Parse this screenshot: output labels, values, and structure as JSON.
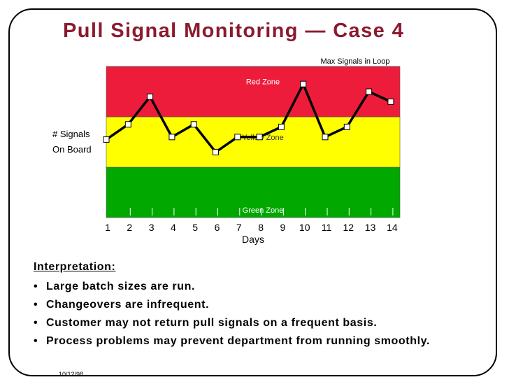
{
  "title": "Pull Signal Monitoring — Case 4",
  "date": "10/12/98",
  "interpretation": {
    "heading": "Interpretation:",
    "bullets": [
      "Large batch sizes are run.",
      "Changeovers are infrequent.",
      "Customer may not return pull signals on a frequent basis.",
      "Process problems may prevent department from running smoothly."
    ]
  },
  "colors": {
    "title": "#8b1a2f",
    "red_zone": "#ee1c3b",
    "yellow_zone": "#ffff00",
    "green_zone": "#00a800",
    "line": "#000000",
    "marker_fill": "#ffffff"
  },
  "chart_data": {
    "type": "line",
    "title": "",
    "xlabel": "Days",
    "ylabel_lines": [
      "# Signals",
      "On Board"
    ],
    "x": [
      1,
      2,
      3,
      4,
      5,
      6,
      7,
      8,
      9,
      10,
      11,
      12,
      13,
      14
    ],
    "x_labels": [
      "1",
      "2",
      "3",
      "4",
      "5",
      "6",
      "7",
      "8",
      "9",
      "10",
      "11",
      "12",
      "13",
      "14"
    ],
    "series": [
      {
        "values": [
          3.1,
          3.7,
          4.8,
          3.2,
          3.7,
          2.6,
          3.2,
          3.2,
          3.6,
          5.3,
          3.2,
          3.6,
          5.0,
          4.6
        ]
      }
    ],
    "ylim": [
      0,
      6
    ],
    "zones": [
      {
        "label": "Green Zone",
        "from": 0,
        "to": 2.0,
        "color": "#00a800"
      },
      {
        "label": "Yellow Zone",
        "from": 2.0,
        "to": 4.0,
        "color": "#ffff00"
      },
      {
        "label": "Red Zone",
        "from": 4.0,
        "to": 6.0,
        "color": "#ee1c3b"
      }
    ],
    "max_line_label": "Max Signals in Loop",
    "grid": false,
    "legend": "none"
  }
}
